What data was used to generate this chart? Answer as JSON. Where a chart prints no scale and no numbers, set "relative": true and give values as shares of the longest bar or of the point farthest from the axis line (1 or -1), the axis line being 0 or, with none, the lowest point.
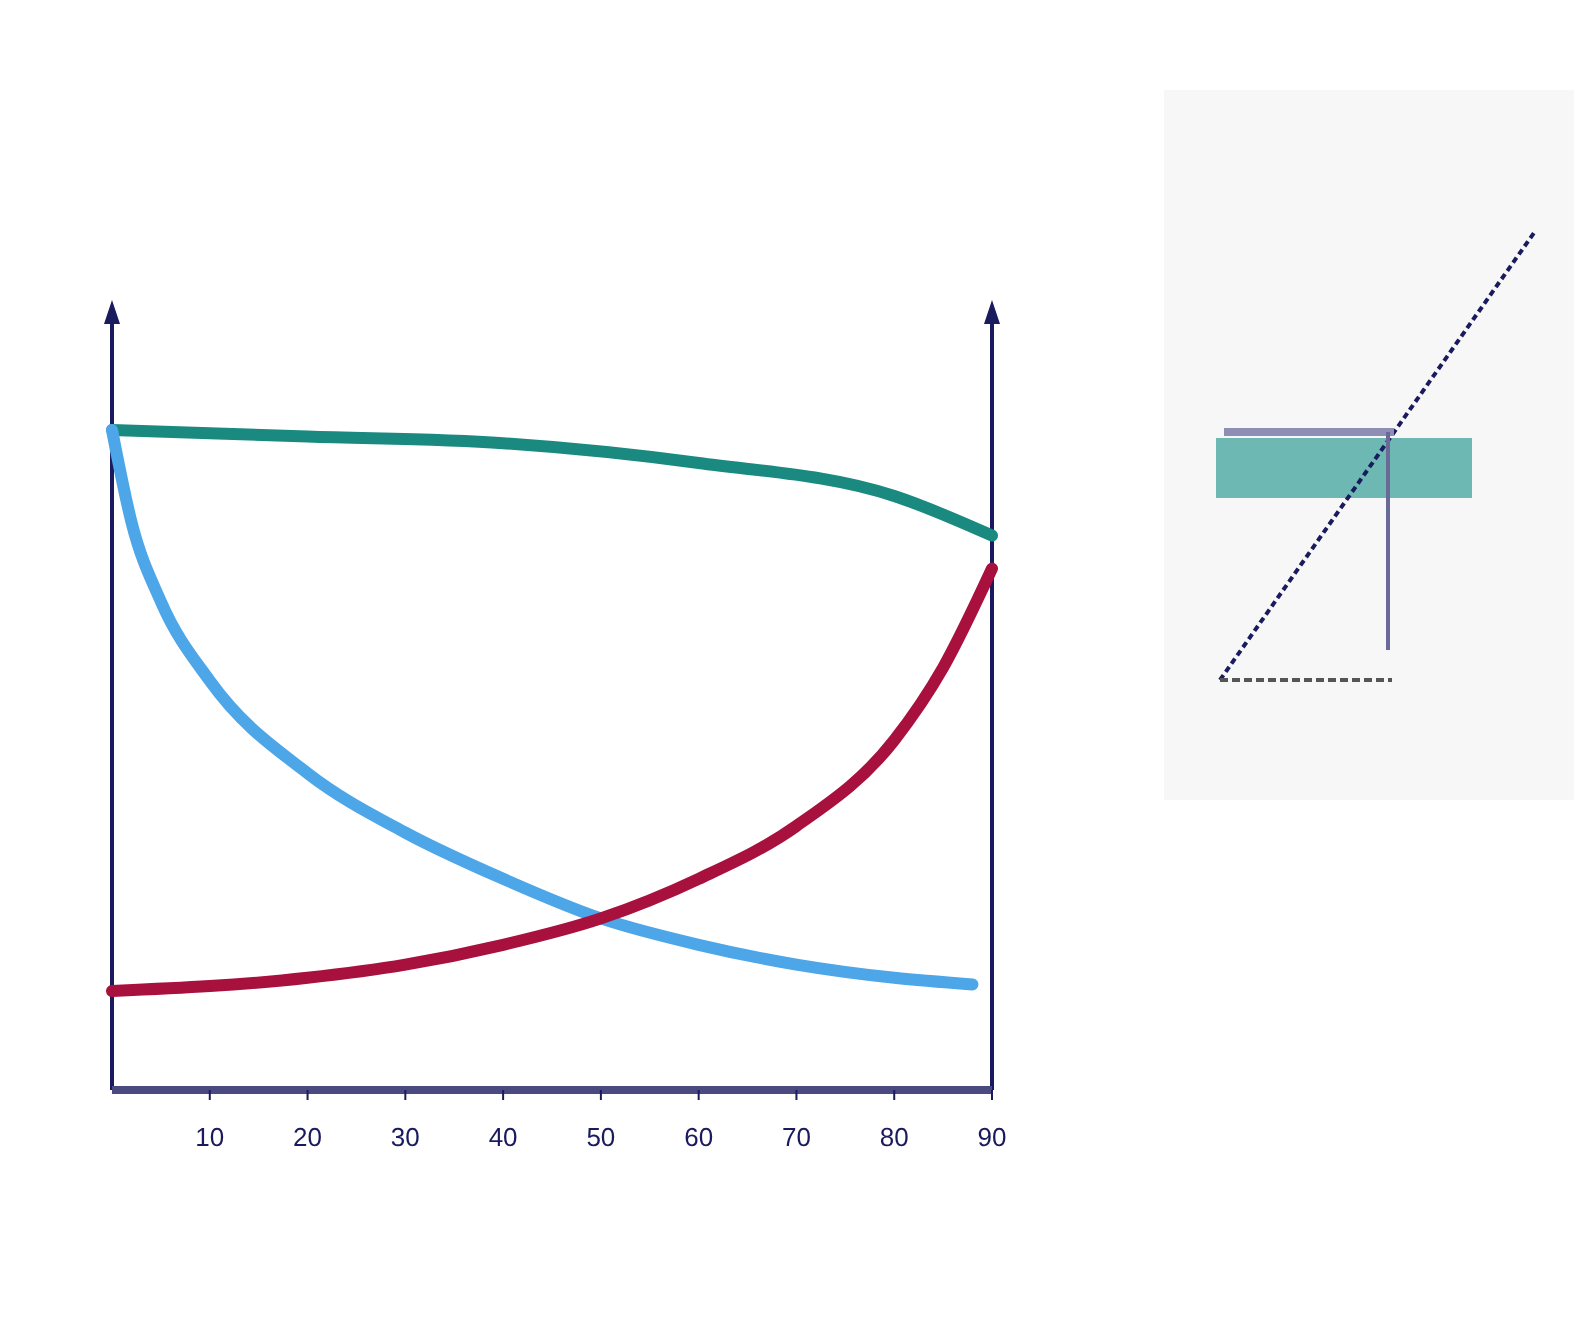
{
  "chart_data": {
    "type": "line",
    "relative": true,
    "xlim": [
      0,
      90
    ],
    "xticks": [
      10,
      20,
      30,
      40,
      50,
      60,
      70,
      80,
      90
    ],
    "grid": false,
    "line_style": "solid",
    "series": [
      {
        "color": "#1a8a80",
        "x": [
          0,
          20,
          40,
          60,
          80,
          90
        ],
        "values": [
          1.0,
          0.99,
          0.98,
          0.95,
          0.9,
          0.84
        ]
      },
      {
        "color": "#4da6e8",
        "x": [
          0,
          2,
          5,
          10,
          20,
          30,
          40,
          50,
          60,
          70,
          80,
          88
        ],
        "values": [
          1.0,
          0.86,
          0.74,
          0.62,
          0.48,
          0.39,
          0.32,
          0.26,
          0.22,
          0.19,
          0.17,
          0.16
        ]
      },
      {
        "color": "#a8103e",
        "x": [
          0,
          20,
          30,
          40,
          50,
          60,
          70,
          80,
          85,
          90
        ],
        "values": [
          0.15,
          0.17,
          0.19,
          0.22,
          0.26,
          0.32,
          0.4,
          0.53,
          0.64,
          0.79
        ]
      }
    ]
  }
}
